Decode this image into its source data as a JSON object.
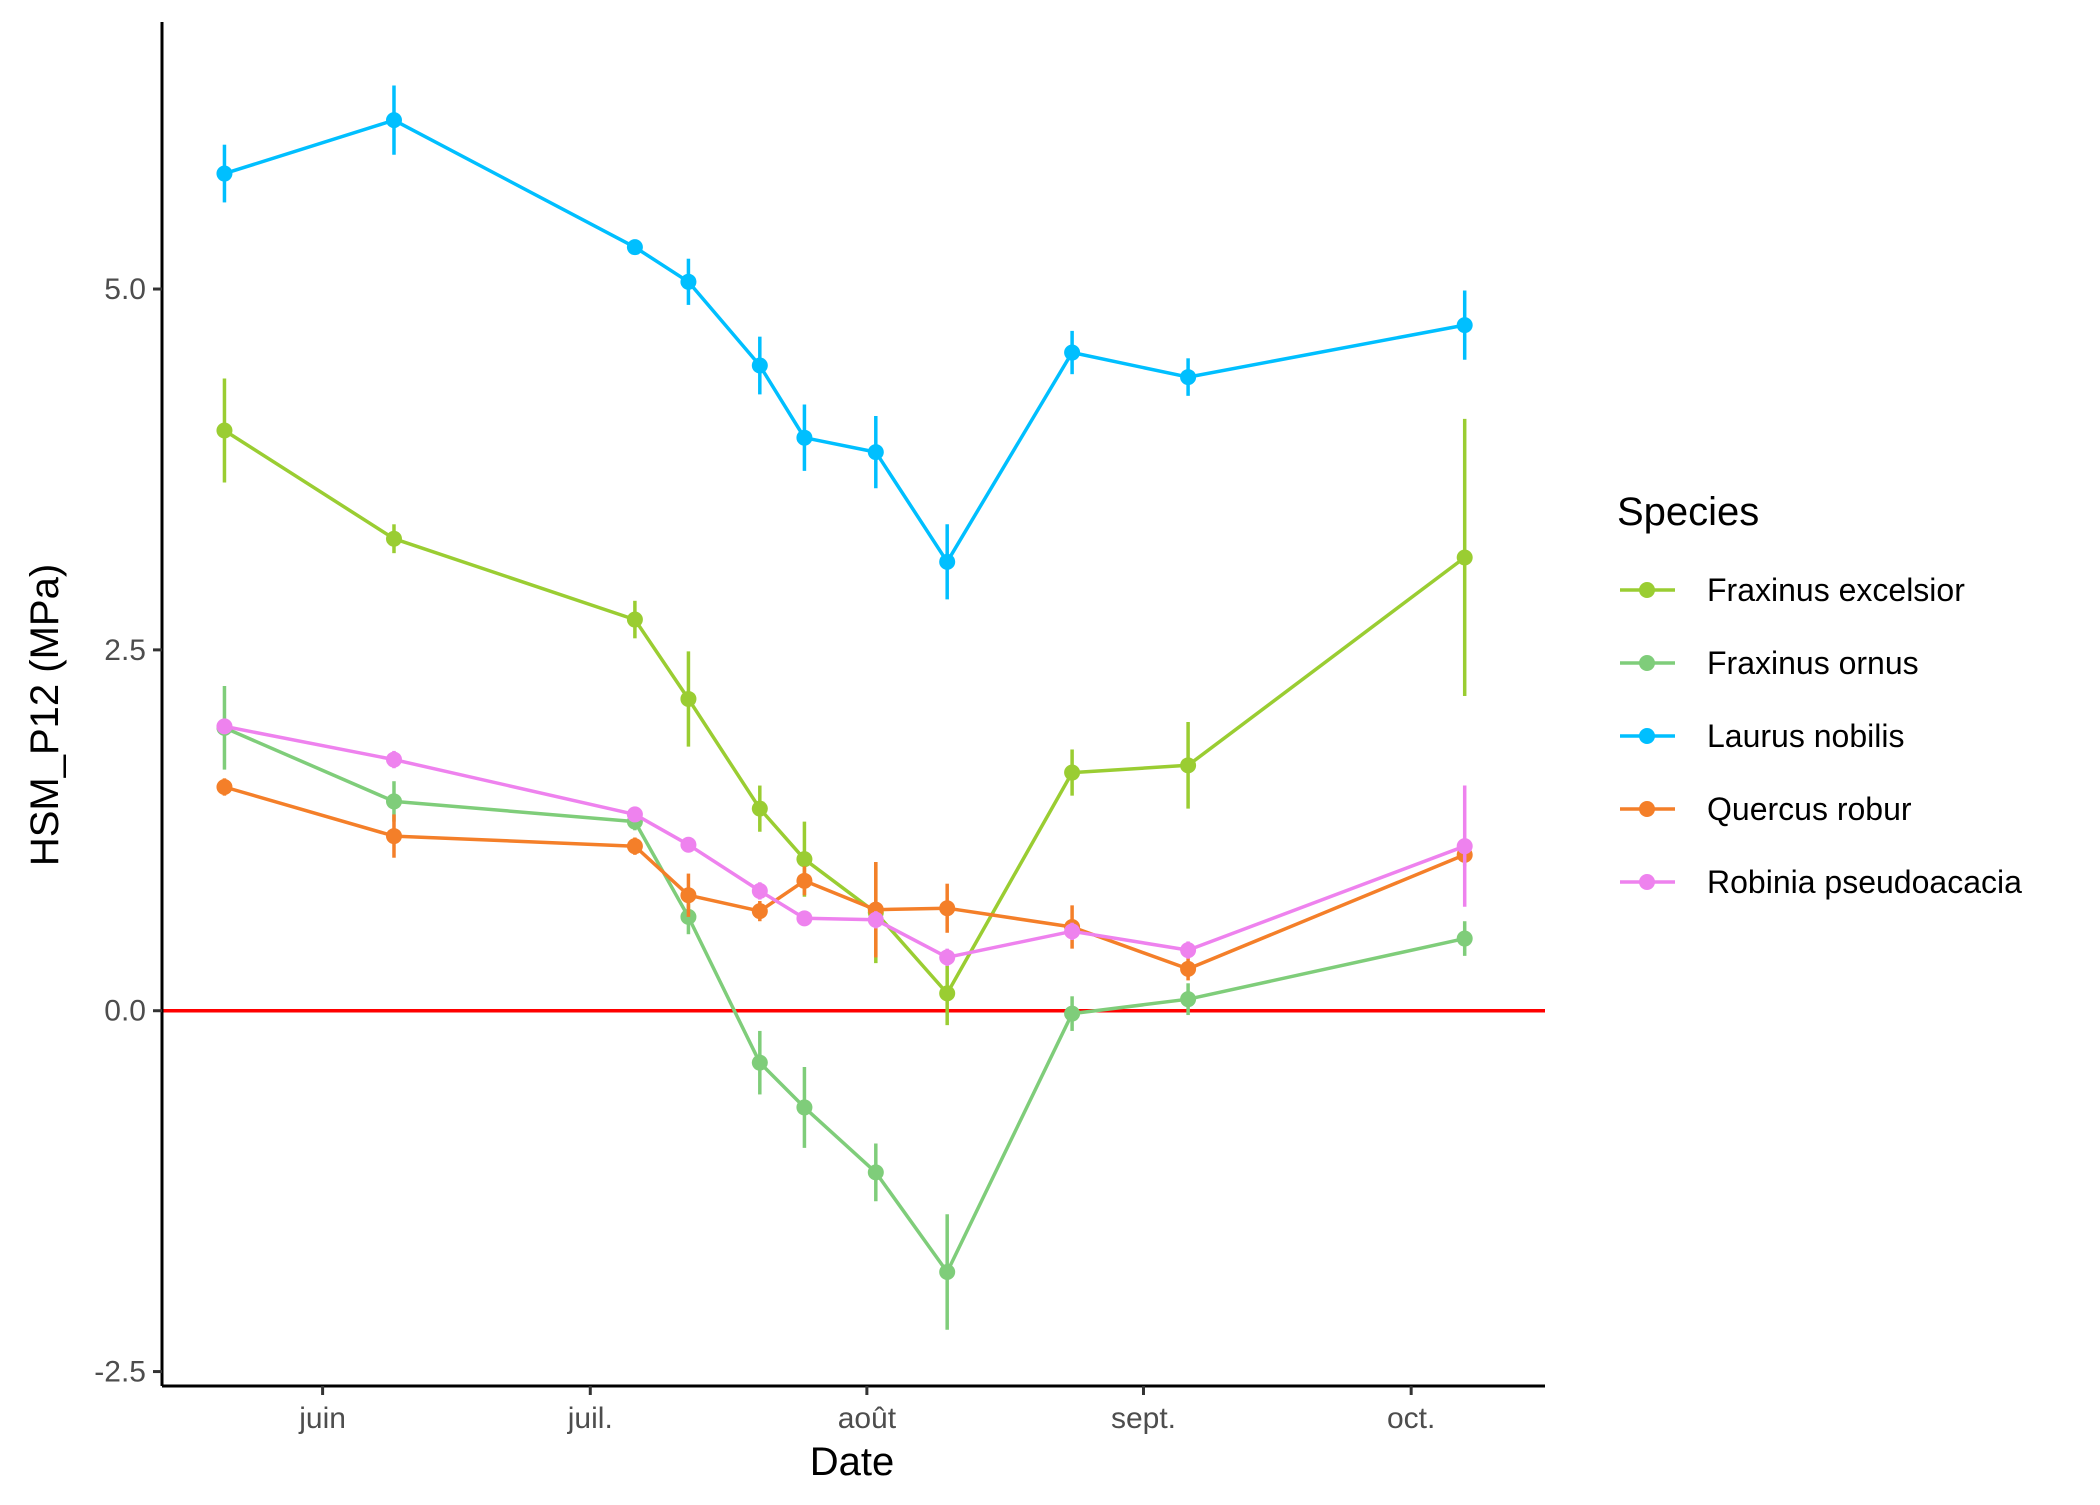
{
  "chart_data": {
    "type": "line",
    "title": "",
    "xlabel": "Date",
    "ylabel": "HSM_P12 (MPa)",
    "x_type": "date",
    "xlim": [
      "2020-05-14",
      "2020-10-16"
    ],
    "ylim": [
      -2.6,
      6.85
    ],
    "x_ticks": [
      {
        "date": "2020-06-01",
        "label": "juin"
      },
      {
        "date": "2020-07-01",
        "label": "juil."
      },
      {
        "date": "2020-08-01",
        "label": "août"
      },
      {
        "date": "2020-09-01",
        "label": "sept."
      },
      {
        "date": "2020-10-01",
        "label": "oct."
      }
    ],
    "y_ticks": [
      {
        "value": -2.5,
        "label": "-2.5"
      },
      {
        "value": 0.0,
        "label": "0.0"
      },
      {
        "value": 2.5,
        "label": "2.5"
      },
      {
        "value": 5.0,
        "label": "5.0"
      }
    ],
    "reference_line": {
      "y": 0,
      "color": "#ff0000"
    },
    "grid": false,
    "legend_title": "Species",
    "legend_position": "right",
    "x": [
      "2020-05-21",
      "2020-06-09",
      "2020-07-06",
      "2020-07-12",
      "2020-07-20",
      "2020-07-25",
      "2020-08-02",
      "2020-08-10",
      "2020-08-24",
      "2020-09-06",
      "2020-10-07"
    ],
    "series": [
      {
        "name": "Fraxinus excelsior",
        "color": "#9acd32",
        "y": [
          4.02,
          3.27,
          2.71,
          2.16,
          1.4,
          1.05,
          0.68,
          0.12,
          1.65,
          1.7,
          3.14
        ],
        "err": [
          0.36,
          0.1,
          0.13,
          0.33,
          0.16,
          0.26,
          0.35,
          0.22,
          0.16,
          0.3,
          0.96
        ]
      },
      {
        "name": "Fraxinus ornus",
        "color": "#7fcd7a",
        "y": [
          1.96,
          1.45,
          1.31,
          0.65,
          -0.36,
          -0.67,
          -1.12,
          -1.81,
          -0.02,
          0.08,
          0.5
        ],
        "err": [
          0.29,
          0.14,
          0.06,
          0.12,
          0.22,
          0.28,
          0.2,
          0.4,
          0.12,
          0.11,
          0.12
        ]
      },
      {
        "name": "Laurus nobilis",
        "color": "#00bfff",
        "y": [
          5.8,
          6.17,
          5.29,
          5.05,
          4.47,
          3.97,
          3.87,
          3.11,
          4.56,
          4.39,
          4.75
        ],
        "err": [
          0.2,
          0.24,
          0.05,
          0.16,
          0.2,
          0.23,
          0.25,
          0.26,
          0.15,
          0.13,
          0.24
        ]
      },
      {
        "name": "Quercus robur",
        "color": "#f47f29",
        "y": [
          1.55,
          1.21,
          1.14,
          0.8,
          0.69,
          0.9,
          0.7,
          0.71,
          0.58,
          0.29,
          1.08
        ],
        "err": [
          0.06,
          0.15,
          0.06,
          0.15,
          0.07,
          0.1,
          0.33,
          0.17,
          0.15,
          0.08,
          0.08
        ]
      },
      {
        "name": "Robinia pseudoacacia",
        "color": "#ee82ee",
        "y": [
          1.97,
          1.74,
          1.36,
          1.15,
          0.83,
          0.64,
          0.63,
          0.37,
          0.55,
          0.42,
          1.14
        ],
        "err": [
          0.04,
          0.06,
          0.05,
          0.05,
          0.06,
          0.05,
          0.06,
          0.06,
          0.06,
          0.06,
          0.42
        ]
      }
    ]
  }
}
